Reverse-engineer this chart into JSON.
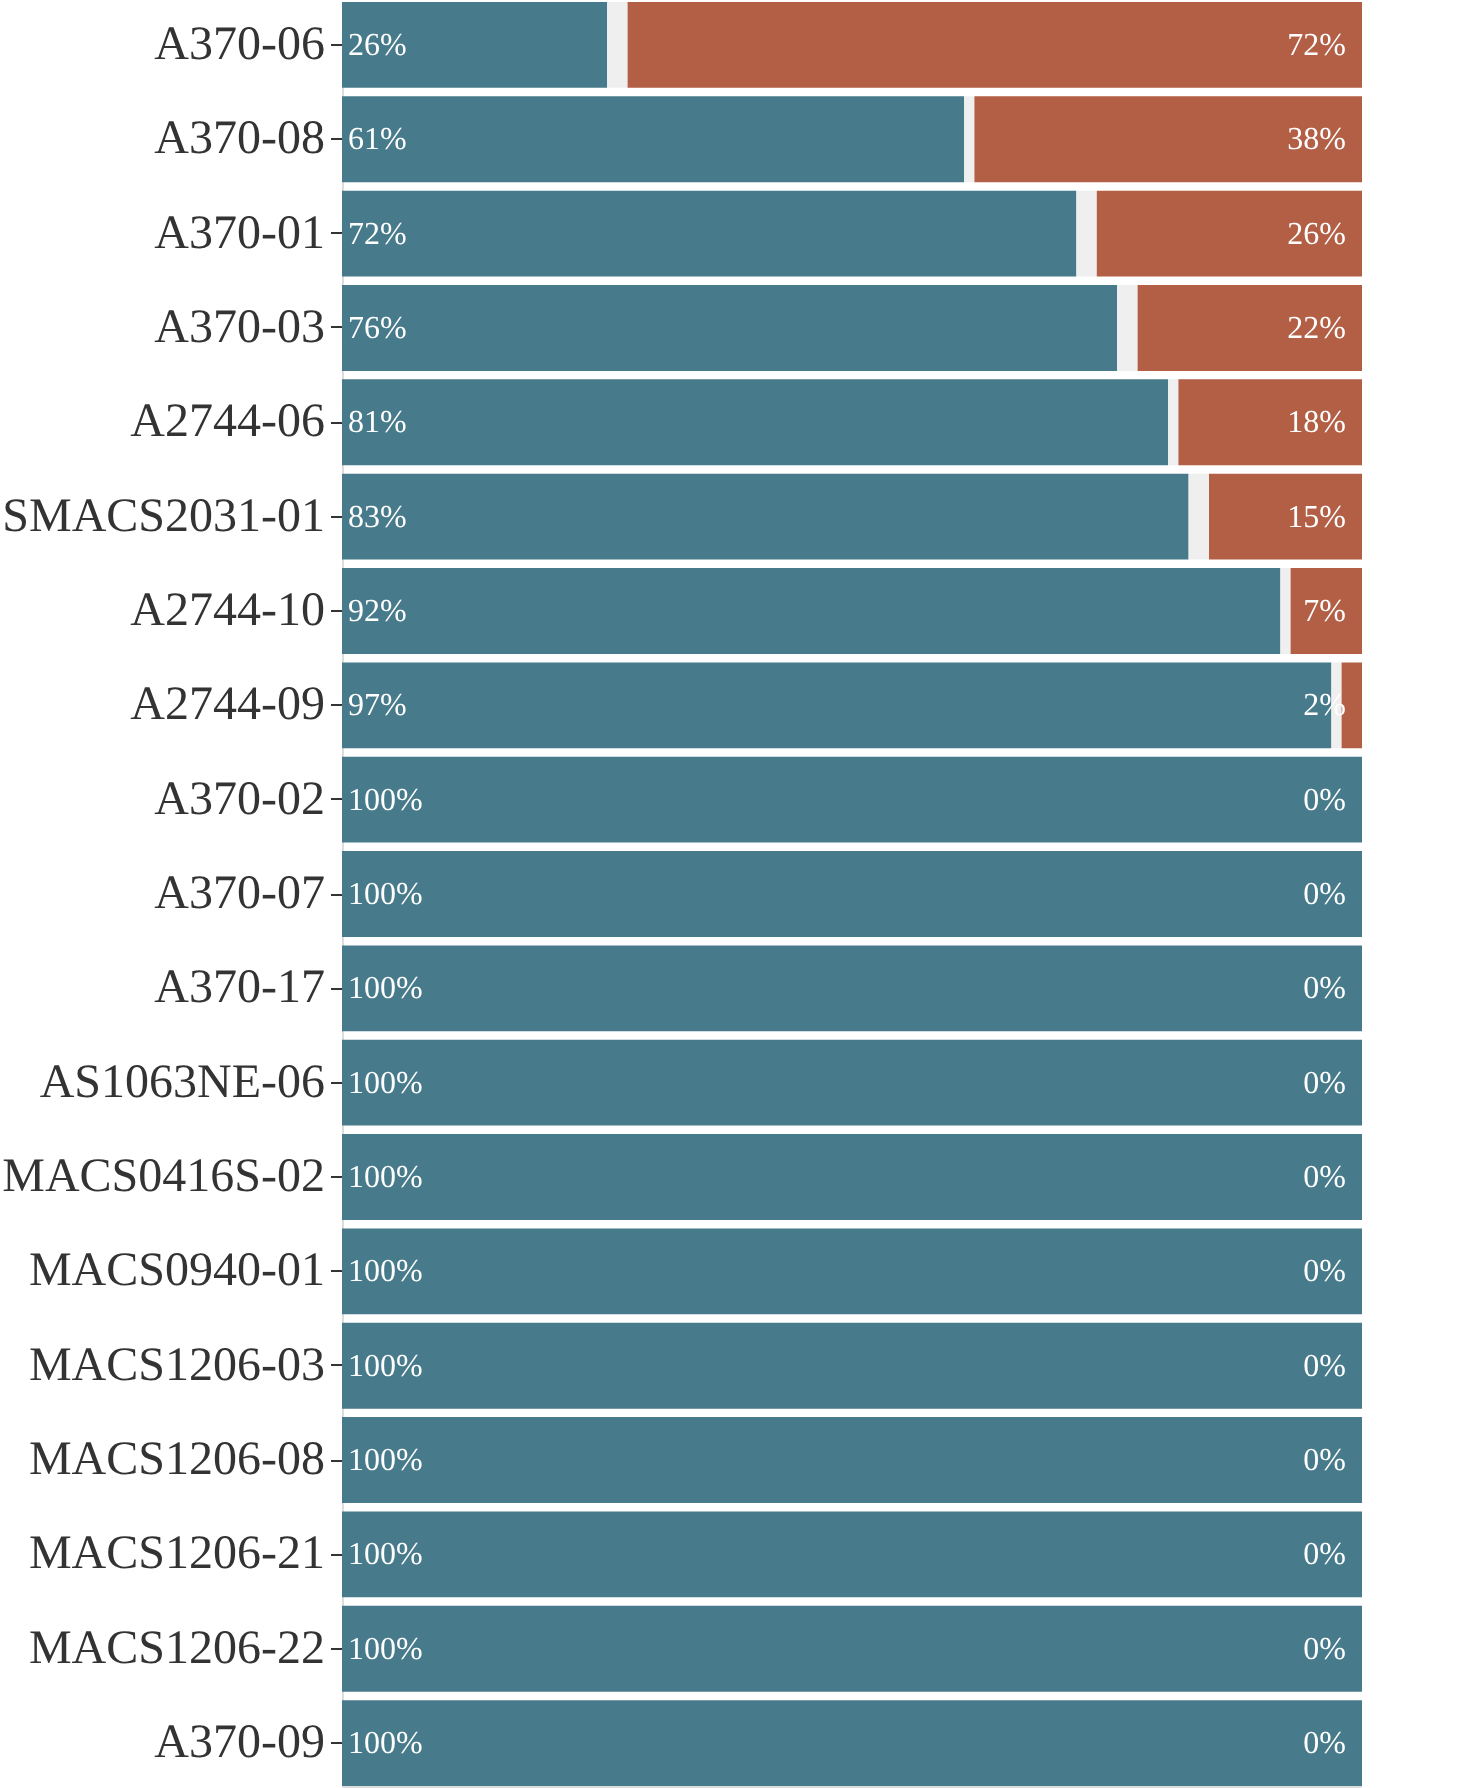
{
  "chart_data": {
    "type": "bar",
    "orientation": "horizontal",
    "stacked": true,
    "xlim": [
      0,
      100
    ],
    "tick_labels": "y",
    "grid": false,
    "legend": false,
    "categories": [
      "A370-06",
      "A370-08",
      "A370-01",
      "A370-03",
      "A2744-06",
      "SMACS2031-01",
      "A2744-10",
      "A2744-09",
      "A370-02",
      "A370-07",
      "A370-17",
      "AS1063NE-06",
      "MACS0416S-02",
      "MACS0940-01",
      "MACS1206-03",
      "MACS1206-08",
      "MACS1206-21",
      "MACS1206-22",
      "A370-09"
    ],
    "series": [
      {
        "color": "#477a8a",
        "values": [
          26,
          61,
          72,
          76,
          81,
          83,
          92,
          97,
          100,
          100,
          100,
          100,
          100,
          100,
          100,
          100,
          100,
          100,
          100
        ],
        "value_labels": [
          "26%",
          "61%",
          "72%",
          "76%",
          "81%",
          "83%",
          "92%",
          "97%",
          "100%",
          "100%",
          "100%",
          "100%",
          "100%",
          "100%",
          "100%",
          "100%",
          "100%",
          "100%",
          "100%"
        ]
      },
      {
        "color": "#efefef",
        "values": [
          2,
          1,
          2,
          2,
          1,
          2,
          1,
          1,
          0,
          0,
          0,
          0,
          0,
          0,
          0,
          0,
          0,
          0,
          0
        ]
      },
      {
        "color": "#b25f45",
        "values": [
          72,
          38,
          26,
          22,
          18,
          15,
          7,
          2,
          0,
          0,
          0,
          0,
          0,
          0,
          0,
          0,
          0,
          0,
          0
        ],
        "value_labels": [
          "72%",
          "38%",
          "26%",
          "22%",
          "18%",
          "15%",
          "7%",
          "2%",
          "0%",
          "0%",
          "0%",
          "0%",
          "0%",
          "0%",
          "0%",
          "0%",
          "0%",
          "0%",
          "0%"
        ]
      }
    ]
  }
}
